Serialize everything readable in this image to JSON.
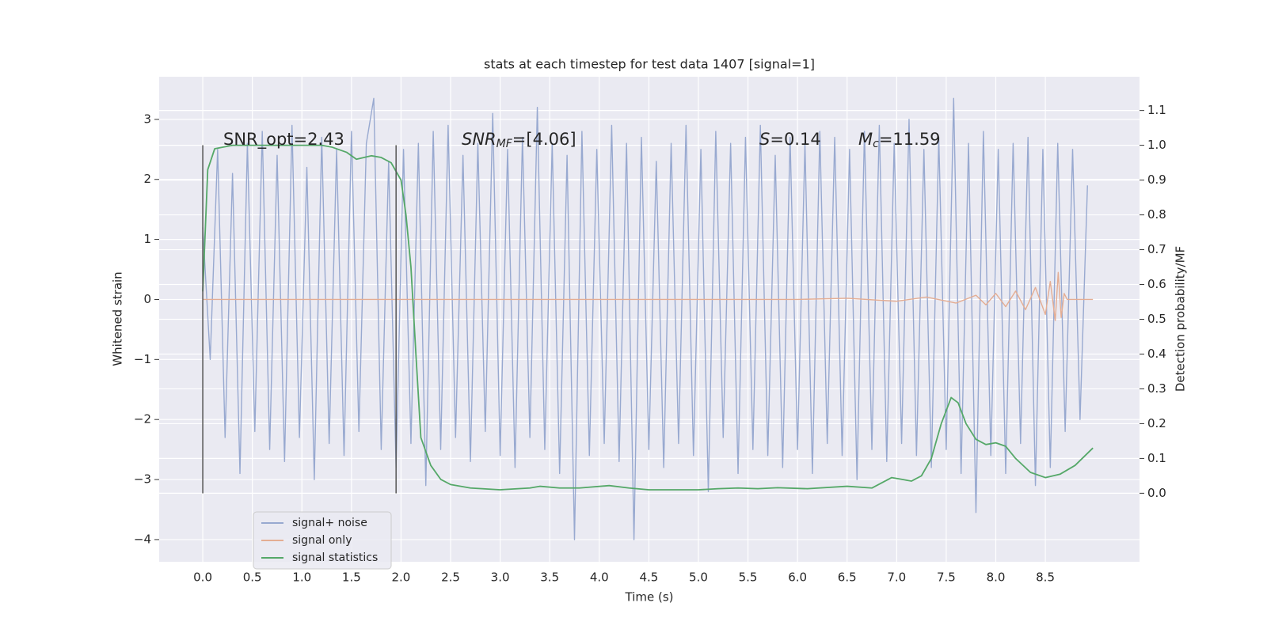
{
  "chart_data": {
    "type": "line",
    "title": "stats at each timestep for test data 1407 [signal=1]",
    "xlabel": "Time (s)",
    "ylabel": "Whitened strain",
    "y2label": "Detection probability/MF",
    "xlim": [
      -0.44,
      9.45
    ],
    "ylim": [
      -4.37,
      3.71
    ],
    "y2lim": [
      -0.197,
      1.197
    ],
    "xticks": [
      {
        "value": 0,
        "label": "0.0"
      },
      0.5,
      {
        "value": 1,
        "label": "1.0"
      },
      1.5,
      {
        "value": 2,
        "label": "2.0"
      },
      2.5,
      {
        "value": 3,
        "label": "3.0"
      },
      3.5,
      {
        "value": 4,
        "label": "4.0"
      },
      4.5,
      {
        "value": 5,
        "label": "5.0"
      },
      5.5,
      {
        "value": 6,
        "label": "6.0"
      },
      6.5,
      {
        "value": 7,
        "label": "7.0"
      },
      7.5,
      {
        "value": 8,
        "label": "8.0"
      },
      8.5
    ],
    "yticks": [
      {
        "value": -4,
        "label": "−4"
      },
      {
        "value": -3,
        "label": "−3"
      },
      {
        "value": -2,
        "label": "−2"
      },
      {
        "value": -1,
        "label": "−1"
      },
      0,
      1,
      2,
      3
    ],
    "y2ticks": [
      {
        "value": 0,
        "label": "0.0"
      },
      0.1,
      0.2,
      0.3,
      0.4,
      0.5,
      0.6,
      0.7,
      0.8,
      0.9,
      {
        "value": 1,
        "label": "1.0"
      },
      1.1
    ],
    "grid": true,
    "legend": "lower left",
    "annotations": [
      {
        "text": "SNR_opt=2.43"
      },
      {
        "italic": "SNR",
        "sub": "MF",
        "text": "=[4.06]"
      },
      {
        "italic": "S",
        "text": "=0.14"
      },
      {
        "italic": "M",
        "sub": "c",
        "text": "=11.59"
      }
    ],
    "vlines": {
      "x": [
        0,
        1.95
      ],
      "ymin": -3.23,
      "ymax": 2.57,
      "color": "#555555"
    },
    "series": [
      {
        "name": "signal+ noise",
        "color": "#98a9d0",
        "x": [
          0,
          0.075,
          0.15,
          0.225,
          0.3,
          0.375,
          0.45,
          0.525,
          0.6,
          0.675,
          0.75,
          0.825,
          0.9,
          0.975,
          1.05,
          1.125,
          1.2,
          1.275,
          1.35,
          1.425,
          1.5,
          1.575,
          1.65,
          1.725,
          1.8,
          1.875,
          1.95,
          2.025,
          2.1,
          2.175,
          2.25,
          2.325,
          2.4,
          2.475,
          2.55,
          2.625,
          2.7,
          2.775,
          2.85,
          2.925,
          3.0,
          3.075,
          3.15,
          3.225,
          3.3,
          3.375,
          3.45,
          3.525,
          3.6,
          3.675,
          3.75,
          3.825,
          3.9,
          3.975,
          4.05,
          4.125,
          4.2,
          4.275,
          4.35,
          4.425,
          4.5,
          4.575,
          4.65,
          4.725,
          4.8,
          4.875,
          4.95,
          5.025,
          5.1,
          5.175,
          5.25,
          5.325,
          5.4,
          5.475,
          5.55,
          5.625,
          5.7,
          5.775,
          5.85,
          5.925,
          6.0,
          6.075,
          6.15,
          6.225,
          6.3,
          6.375,
          6.45,
          6.525,
          6.6,
          6.675,
          6.75,
          6.825,
          6.9,
          6.975,
          7.05,
          7.125,
          7.2,
          7.275,
          7.35,
          7.425,
          7.5,
          7.575,
          7.65,
          7.725,
          7.8,
          7.875,
          7.95,
          8.025,
          8.1,
          8.175,
          8.25,
          8.325,
          8.4,
          8.475,
          8.55,
          8.625,
          8.7,
          8.775,
          8.85,
          8.925
        ],
        "values": [
          1.2,
          -1.0,
          2.5,
          -2.3,
          2.1,
          -2.9,
          2.6,
          -2.2,
          2.8,
          -2.5,
          2.4,
          -2.7,
          2.9,
          -2.3,
          2.2,
          -3.0,
          2.7,
          -2.4,
          2.5,
          -2.6,
          2.8,
          -2.2,
          2.6,
          3.35,
          -2.5,
          2.3,
          -2.8,
          2.5,
          -2.4,
          2.6,
          -3.1,
          2.8,
          -2.5,
          2.9,
          -2.3,
          2.4,
          -2.7,
          2.6,
          -2.2,
          3.1,
          -2.6,
          2.5,
          -2.8,
          2.7,
          -2.3,
          3.2,
          -2.5,
          2.6,
          -2.9,
          2.4,
          -4.0,
          2.8,
          -2.6,
          2.5,
          -2.4,
          2.9,
          -2.7,
          2.6,
          -4.0,
          2.7,
          -2.5,
          2.3,
          -2.8,
          2.6,
          -2.4,
          2.9,
          -2.6,
          2.5,
          -3.2,
          2.8,
          -2.3,
          2.6,
          -2.9,
          2.7,
          -2.5,
          2.9,
          -2.6,
          2.4,
          -2.8,
          2.7,
          -2.5,
          2.6,
          -2.9,
          2.8,
          -2.4,
          2.7,
          -2.6,
          2.5,
          -3.0,
          2.8,
          -2.5,
          2.9,
          -2.7,
          2.6,
          -2.4,
          3.0,
          -2.6,
          2.5,
          -2.8,
          2.7,
          -2.5,
          3.35,
          -2.9,
          2.6,
          -3.55,
          2.8,
          -2.6,
          2.5,
          -2.9,
          2.6,
          -2.4,
          2.7,
          -3.1,
          2.5,
          -2.8,
          2.6,
          -2.2,
          2.5,
          -2.0,
          1.9
        ]
      },
      {
        "name": "signal only",
        "color": "#e4ad93",
        "x": [
          0,
          6.0,
          6.5,
          7.0,
          7.3,
          7.6,
          7.8,
          7.9,
          8.0,
          8.1,
          8.2,
          8.3,
          8.4,
          8.5,
          8.55,
          8.6,
          8.63,
          8.66,
          8.69,
          8.72,
          8.98
        ],
        "values": [
          0,
          0,
          0.02,
          -0.03,
          0.04,
          -0.06,
          0.07,
          -0.09,
          0.1,
          -0.12,
          0.14,
          -0.17,
          0.2,
          -0.25,
          0.3,
          -0.35,
          0.45,
          -0.3,
          0.1,
          0,
          0
        ]
      },
      {
        "name": "signal statistics",
        "color": "#55a868",
        "axis": "y2",
        "x": [
          0,
          0.05,
          0.12,
          0.3,
          1.0,
          1.2,
          1.3,
          1.45,
          1.55,
          1.7,
          1.8,
          1.9,
          2.0,
          2.05,
          2.1,
          2.15,
          2.2,
          2.3,
          2.4,
          2.5,
          2.7,
          3.0,
          3.3,
          3.4,
          3.6,
          3.8,
          4.1,
          4.3,
          4.5,
          5.0,
          5.2,
          5.4,
          5.6,
          5.8,
          6.1,
          6.5,
          6.75,
          6.85,
          6.95,
          7.05,
          7.15,
          7.25,
          7.35,
          7.45,
          7.55,
          7.62,
          7.7,
          7.8,
          7.9,
          8.0,
          8.1,
          8.2,
          8.35,
          8.5,
          8.65,
          8.8,
          8.98
        ],
        "values": [
          0.58,
          0.93,
          0.99,
          1.0,
          1.0,
          1.0,
          0.995,
          0.98,
          0.96,
          0.97,
          0.965,
          0.95,
          0.9,
          0.8,
          0.65,
          0.4,
          0.16,
          0.08,
          0.04,
          0.025,
          0.015,
          0.01,
          0.015,
          0.02,
          0.015,
          0.015,
          0.022,
          0.015,
          0.01,
          0.01,
          0.013,
          0.015,
          0.013,
          0.016,
          0.013,
          0.02,
          0.015,
          0.03,
          0.045,
          0.04,
          0.035,
          0.05,
          0.1,
          0.2,
          0.275,
          0.26,
          0.2,
          0.155,
          0.14,
          0.145,
          0.135,
          0.1,
          0.06,
          0.045,
          0.055,
          0.08,
          0.13
        ]
      }
    ]
  }
}
